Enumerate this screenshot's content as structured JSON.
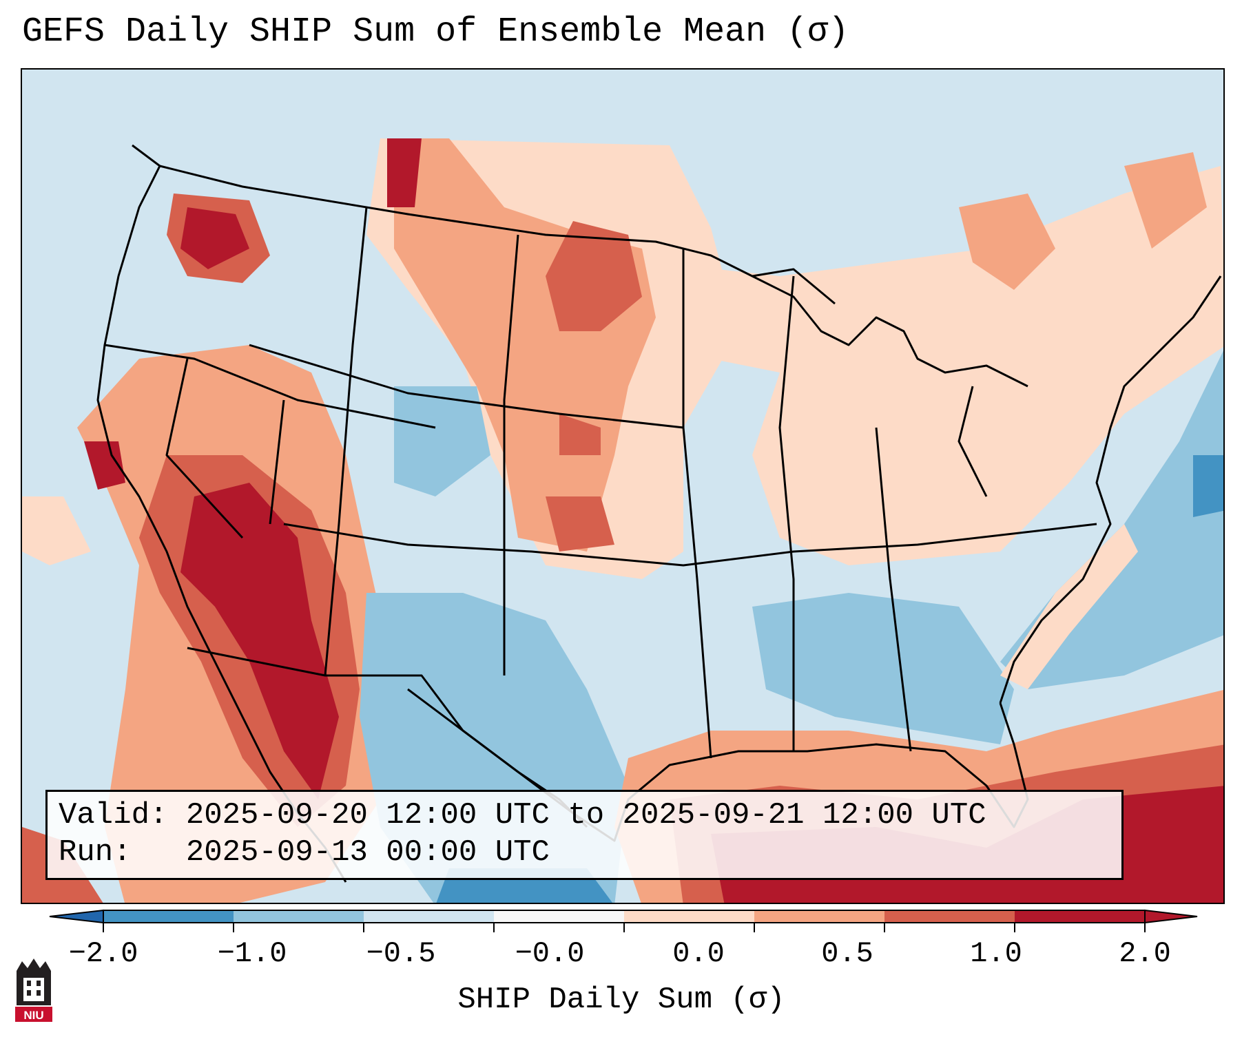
{
  "title": "GEFS Daily SHIP Sum of Ensemble Mean (σ)",
  "info": {
    "valid_label": "Valid:",
    "valid_value": "2025-09-20 12:00 UTC to 2025-09-21 12:00 UTC",
    "run_label": "Run:",
    "run_value": "2025-09-13 00:00 UTC"
  },
  "colorbar": {
    "label": "SHIP Daily Sum (σ)",
    "ticks": [
      "−2.0",
      "−1.0",
      "−0.5",
      "−0.0",
      "0.0",
      "0.5",
      "1.0",
      "2.0"
    ],
    "colors": [
      "#4393c3",
      "#92c5de",
      "#d1e5f0",
      "#f7f7f7",
      "#fddbc7",
      "#f4a582",
      "#d6604d",
      "#b2182b"
    ],
    "extend_low_color": "#2166ac",
    "extend_high_color": "#b2182b"
  },
  "logo": {
    "text": "NIU",
    "color": "#c8102e"
  }
}
